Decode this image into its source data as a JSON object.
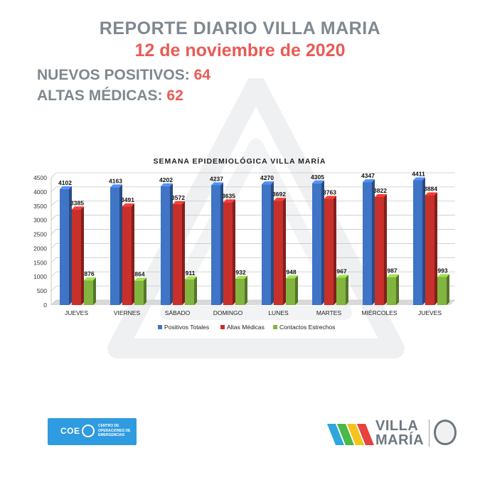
{
  "header": {
    "title": "REPORTE DIARIO VILLA MARIA",
    "date": "12 de noviembre de 2020"
  },
  "stats": {
    "new_positive_label": "NUEVOS POSITIVOS:",
    "new_positive_value": "64",
    "discharges_label": "ALTAS MÉDICAS:",
    "discharges_value": "62"
  },
  "chart_data": {
    "type": "bar",
    "title": "SEMANA EPIDEMIOLÓGICA VILLA MARÍA",
    "categories": [
      "JUEVES",
      "VIERNES",
      "SÁBADO",
      "DOMINGO",
      "LUNES",
      "MARTES",
      "MIÉRCOLES",
      "JUEVES"
    ],
    "series": [
      {
        "name": "Positivos Totales",
        "color": "#3f74c6",
        "values": [
          4102,
          4163,
          4202,
          4237,
          4270,
          4305,
          4347,
          4411
        ]
      },
      {
        "name": "Altas Médicas",
        "color": "#c8302b",
        "values": [
          3385,
          3491,
          3572,
          3635,
          3692,
          3763,
          3822,
          3884
        ]
      },
      {
        "name": "Contactos Estrechos",
        "color": "#82b53f",
        "values": [
          876,
          864,
          911,
          932,
          948,
          967,
          987,
          993
        ]
      }
    ],
    "yticks": [
      0,
      500,
      1000,
      1500,
      2000,
      2500,
      3000,
      3500,
      4000,
      4500
    ],
    "ylim": [
      0,
      4500
    ],
    "grid": true,
    "legend": "bottom"
  },
  "logos": {
    "coe_word": "COE",
    "coe_subtitle": "CENTRO DE OPERACIONES DE EMERGENCIAS",
    "vm_line1": "VILLA",
    "vm_line2": "MARÍA"
  }
}
